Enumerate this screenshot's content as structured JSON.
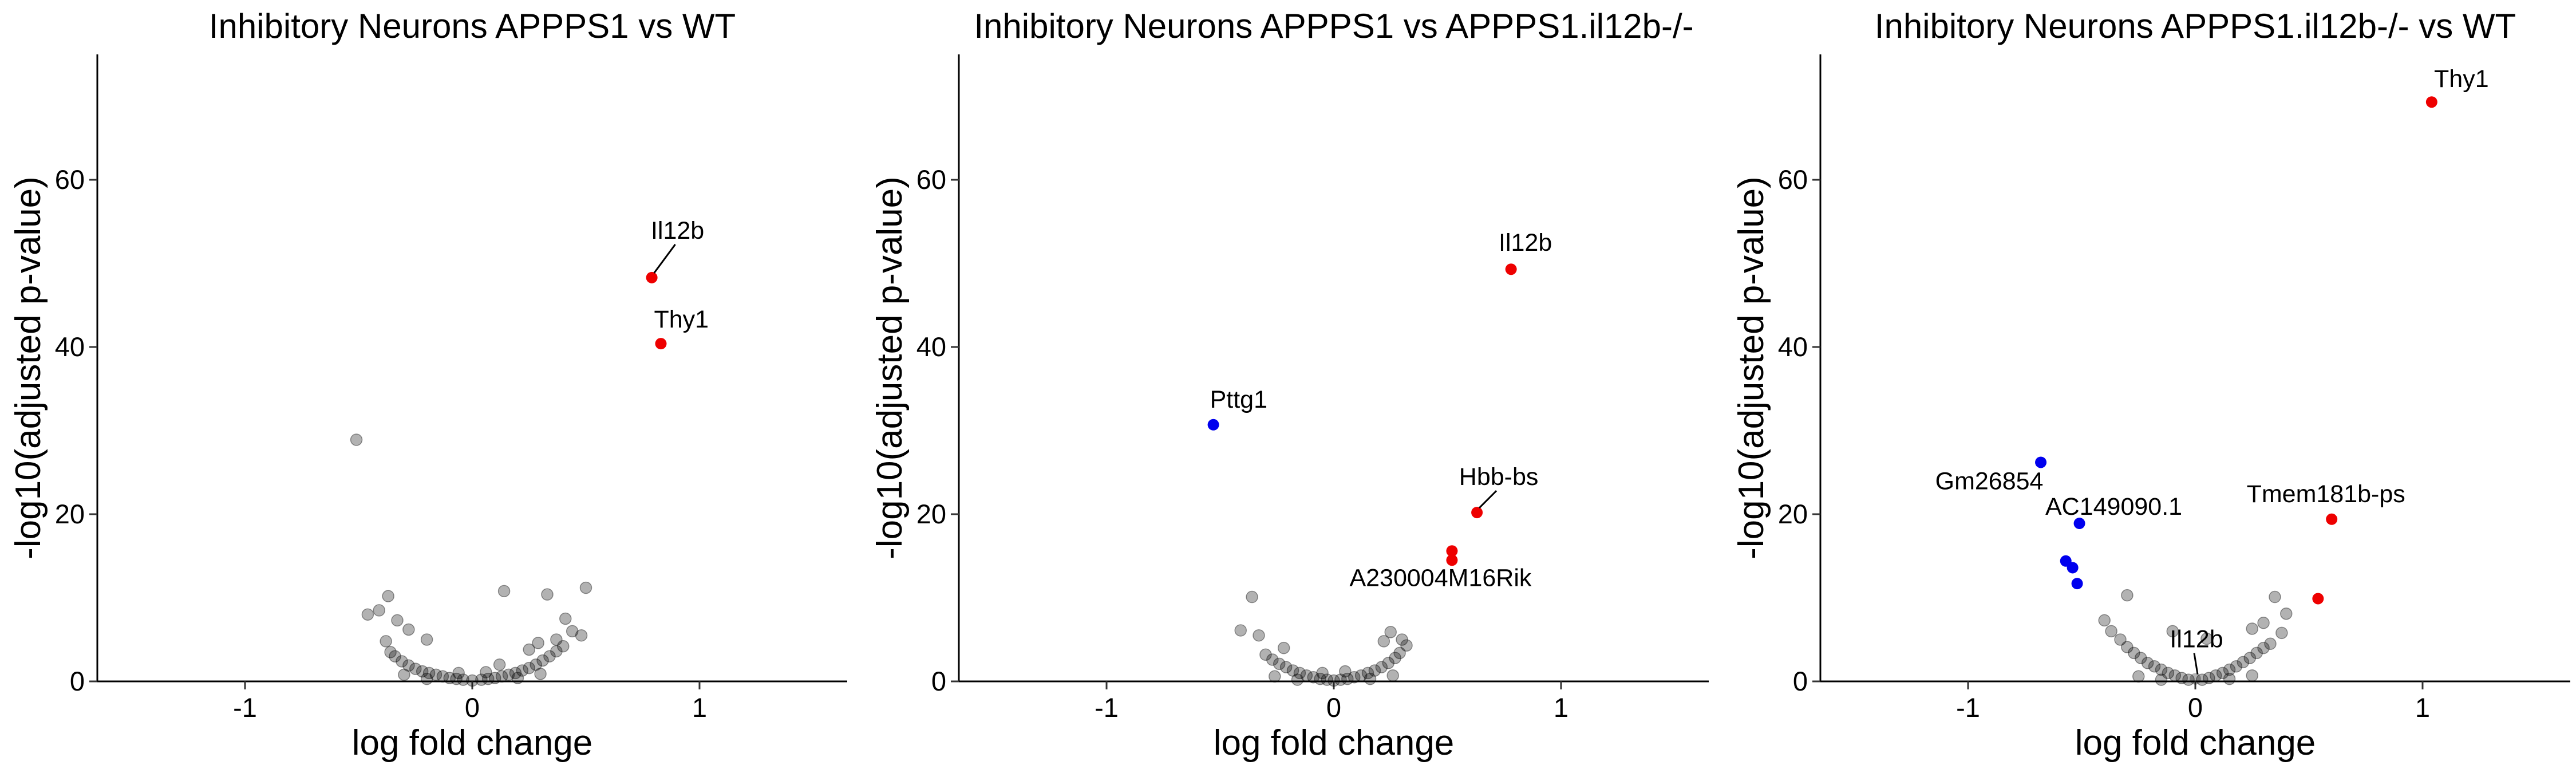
{
  "figure": {
    "colors": {
      "up": "#ee0000",
      "down": "#0000ee",
      "ns": "#000000",
      "background": "#ffffff"
    },
    "ns_opacity": 0.3
  },
  "chart_data": [
    {
      "type": "scatter",
      "title": "Inhibitory Neurons APPPS1 vs WT",
      "xlabel": "log fold change",
      "ylabel": "-log10(adjusted p-value)",
      "xlim": [
        -1.65,
        1.65
      ],
      "ylim": [
        0,
        75
      ],
      "xticks": [
        "-1",
        "0",
        "1"
      ],
      "yticks": [
        "0",
        "20",
        "40",
        "60"
      ],
      "grid": false,
      "legend": "none",
      "highlighted_points": [
        {
          "label": "Il12b",
          "x": 0.79,
          "y": 48.3,
          "direction": "up"
        },
        {
          "label": "Thy1",
          "x": 0.83,
          "y": 40.4,
          "direction": "up"
        }
      ],
      "background_points": [
        [
          -0.51,
          28.9
        ],
        [
          0.14,
          10.8
        ],
        [
          0.33,
          10.4
        ],
        [
          0.5,
          11.2
        ],
        [
          -0.37,
          10.2
        ],
        [
          -0.41,
          8.5
        ],
        [
          -0.46,
          8.0
        ],
        [
          -0.33,
          7.3
        ],
        [
          0.41,
          7.5
        ],
        [
          0.44,
          6.0
        ],
        [
          0.37,
          5.0
        ],
        [
          -0.2,
          5.0
        ],
        [
          -0.28,
          6.2
        ],
        [
          0.48,
          5.5
        ],
        [
          0.29,
          4.6
        ],
        [
          0.25,
          3.8
        ],
        [
          -0.38,
          4.8
        ],
        [
          -0.36,
          3.5
        ],
        [
          -0.34,
          3.0
        ],
        [
          -0.31,
          2.4
        ],
        [
          -0.28,
          1.9
        ],
        [
          -0.25,
          1.5
        ],
        [
          -0.22,
          1.2
        ],
        [
          -0.19,
          1.0
        ],
        [
          -0.16,
          0.8
        ],
        [
          -0.13,
          0.6
        ],
        [
          -0.1,
          0.4
        ],
        [
          -0.07,
          0.3
        ],
        [
          -0.04,
          0.2
        ],
        [
          0.0,
          0.1
        ],
        [
          0.04,
          0.2
        ],
        [
          0.07,
          0.3
        ],
        [
          0.1,
          0.4
        ],
        [
          0.13,
          0.6
        ],
        [
          0.16,
          0.8
        ],
        [
          0.19,
          1.0
        ],
        [
          0.22,
          1.3
        ],
        [
          0.25,
          1.6
        ],
        [
          0.28,
          2.0
        ],
        [
          0.31,
          2.5
        ],
        [
          0.34,
          3.0
        ],
        [
          0.37,
          3.6
        ],
        [
          0.4,
          4.2
        ],
        [
          -0.3,
          0.8
        ],
        [
          0.3,
          0.9
        ],
        [
          -0.2,
          0.3
        ],
        [
          0.2,
          0.4
        ],
        [
          -0.06,
          1.0
        ],
        [
          0.06,
          1.1
        ],
        [
          0.12,
          2.0
        ]
      ]
    },
    {
      "type": "scatter",
      "title": "Inhibitory Neurons APPPS1 vs APPPS1.il12b-/-",
      "xlabel": "log fold change",
      "ylabel": "-log10(adjusted p-value)",
      "xlim": [
        -1.65,
        1.65
      ],
      "ylim": [
        0,
        75
      ],
      "xticks": [
        "-1",
        "0",
        "1"
      ],
      "yticks": [
        "0",
        "20",
        "40",
        "60"
      ],
      "grid": false,
      "legend": "none",
      "highlighted_points": [
        {
          "label": "Il12b",
          "x": 0.78,
          "y": 49.3,
          "direction": "up"
        },
        {
          "label": "Pttg1",
          "x": -0.53,
          "y": 30.7,
          "direction": "down"
        },
        {
          "label": "Hbb-bs",
          "x": 0.63,
          "y": 20.2,
          "direction": "up"
        },
        {
          "label": "",
          "x": 0.52,
          "y": 15.6,
          "direction": "up"
        },
        {
          "label": "A230004M16Rik",
          "x": 0.52,
          "y": 14.5,
          "direction": "up"
        }
      ],
      "background_points": [
        [
          -0.36,
          10.1
        ],
        [
          -0.41,
          6.1
        ],
        [
          -0.33,
          5.5
        ],
        [
          -0.22,
          4.0
        ],
        [
          0.22,
          4.8
        ],
        [
          0.25,
          5.9
        ],
        [
          0.3,
          5.0
        ],
        [
          0.32,
          4.3
        ],
        [
          -0.3,
          3.2
        ],
        [
          -0.27,
          2.6
        ],
        [
          -0.24,
          2.1
        ],
        [
          -0.21,
          1.7
        ],
        [
          -0.18,
          1.3
        ],
        [
          -0.15,
          1.0
        ],
        [
          -0.12,
          0.7
        ],
        [
          -0.09,
          0.5
        ],
        [
          -0.06,
          0.3
        ],
        [
          -0.03,
          0.2
        ],
        [
          0.0,
          0.1
        ],
        [
          0.03,
          0.2
        ],
        [
          0.06,
          0.3
        ],
        [
          0.09,
          0.5
        ],
        [
          0.12,
          0.7
        ],
        [
          0.15,
          1.0
        ],
        [
          0.18,
          1.3
        ],
        [
          0.21,
          1.7
        ],
        [
          0.24,
          2.2
        ],
        [
          0.27,
          2.8
        ],
        [
          0.29,
          3.4
        ],
        [
          -0.26,
          0.6
        ],
        [
          0.26,
          0.7
        ],
        [
          -0.16,
          0.2
        ],
        [
          0.16,
          0.3
        ],
        [
          0.05,
          1.2
        ],
        [
          -0.05,
          1.0
        ]
      ]
    },
    {
      "type": "scatter",
      "title": "Inhibitory Neurons APPPS1.il12b-/- vs WT",
      "xlabel": "log fold change",
      "ylabel": "-log10(adjusted p-value)",
      "xlim": [
        -1.65,
        1.65
      ],
      "ylim": [
        0,
        75
      ],
      "xticks": [
        "-1",
        "0",
        "1"
      ],
      "yticks": [
        "0",
        "20",
        "40",
        "60"
      ],
      "grid": false,
      "legend": "none",
      "highlighted_points": [
        {
          "label": "Thy1",
          "x": 1.04,
          "y": 69.3,
          "direction": "up"
        },
        {
          "label": "Gm26854",
          "x": -0.68,
          "y": 26.2,
          "direction": "down"
        },
        {
          "label": "Tmem181b-ps",
          "x": 0.6,
          "y": 19.4,
          "direction": "up"
        },
        {
          "label": "AC149090.1",
          "x": -0.51,
          "y": 18.9,
          "direction": "down"
        },
        {
          "label": "",
          "x": -0.57,
          "y": 14.4,
          "direction": "down"
        },
        {
          "label": "",
          "x": -0.54,
          "y": 13.6,
          "direction": "down"
        },
        {
          "label": "",
          "x": -0.52,
          "y": 11.7,
          "direction": "down"
        },
        {
          "label": "",
          "x": 0.54,
          "y": 9.9,
          "direction": "up"
        },
        {
          "label": "Il12b",
          "x": 0.0,
          "y": 0.3,
          "direction": "ns"
        }
      ],
      "background_points": [
        [
          -0.3,
          10.3
        ],
        [
          0.35,
          10.1
        ],
        [
          0.4,
          8.1
        ],
        [
          -0.4,
          7.3
        ],
        [
          -0.37,
          6.0
        ],
        [
          0.3,
          7.0
        ],
        [
          0.25,
          6.3
        ],
        [
          -0.1,
          6.0
        ],
        [
          0.05,
          5.1
        ],
        [
          0.38,
          5.8
        ],
        [
          -0.33,
          5.0
        ],
        [
          0.33,
          4.5
        ],
        [
          -0.3,
          4.1
        ],
        [
          -0.27,
          3.4
        ],
        [
          -0.24,
          2.8
        ],
        [
          -0.21,
          2.2
        ],
        [
          -0.18,
          1.8
        ],
        [
          -0.15,
          1.4
        ],
        [
          -0.12,
          1.0
        ],
        [
          -0.09,
          0.7
        ],
        [
          -0.06,
          0.4
        ],
        [
          -0.03,
          0.2
        ],
        [
          0.03,
          0.2
        ],
        [
          0.06,
          0.4
        ],
        [
          0.09,
          0.7
        ],
        [
          0.12,
          1.0
        ],
        [
          0.15,
          1.4
        ],
        [
          0.18,
          1.8
        ],
        [
          0.21,
          2.3
        ],
        [
          0.24,
          2.8
        ],
        [
          0.27,
          3.4
        ],
        [
          0.3,
          4.0
        ],
        [
          -0.25,
          0.6
        ],
        [
          0.25,
          0.7
        ],
        [
          -0.15,
          0.2
        ],
        [
          0.15,
          0.3
        ]
      ]
    }
  ]
}
